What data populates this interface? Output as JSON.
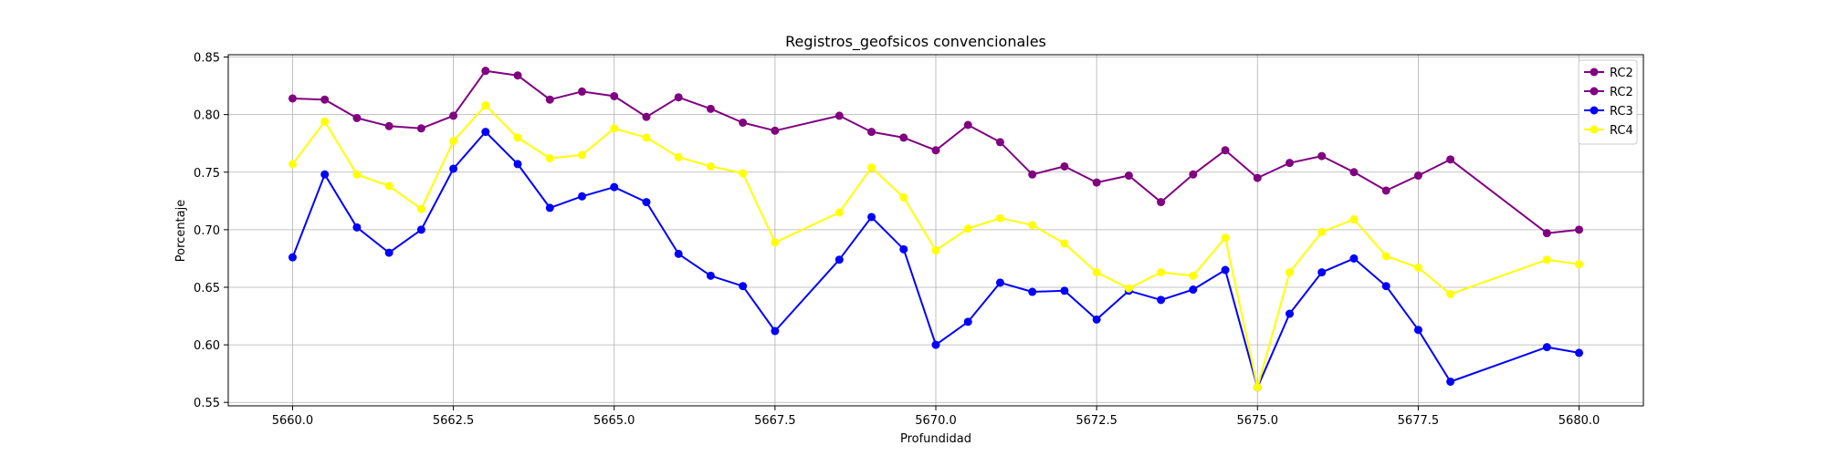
{
  "chart_data": {
    "type": "line",
    "title": "Registros_geofsicos convencionales",
    "xlabel": "Profundidad",
    "ylabel": "Porcentaje",
    "xlim": [
      5659,
      5681
    ],
    "ylim": [
      0.547,
      0.852
    ],
    "xticks": [
      5660.0,
      5662.5,
      5665.0,
      5667.5,
      5670.0,
      5672.5,
      5675.0,
      5677.5,
      5680.0
    ],
    "xtick_labels": [
      "5660.0",
      "5662.5",
      "5665.0",
      "5667.5",
      "5670.0",
      "5672.5",
      "5675.0",
      "5677.5",
      "5680.0"
    ],
    "yticks": [
      0.55,
      0.6,
      0.65,
      0.7,
      0.75,
      0.8,
      0.85
    ],
    "ytick_labels": [
      "0.55",
      "0.60",
      "0.65",
      "0.70",
      "0.75",
      "0.80",
      "0.85"
    ],
    "grid": true,
    "legend_position": "top-right",
    "series": [
      {
        "name": "RC2",
        "color": "#800080",
        "x": [
          5660.0,
          5660.5,
          5661.0,
          5661.5,
          5662.0,
          5662.5,
          5663.0,
          5663.5,
          5664.0,
          5664.5,
          5665.0,
          5665.5,
          5666.0,
          5666.5,
          5667.0,
          5667.5,
          5668.5,
          5669.0,
          5669.5,
          5670.0,
          5670.5,
          5671.0,
          5671.5,
          5672.0,
          5672.5,
          5673.0,
          5673.5,
          5674.0,
          5674.5,
          5675.0,
          5675.5,
          5676.0,
          5676.5,
          5677.0,
          5677.5,
          5678.0,
          5679.5,
          5680.0
        ],
        "y": [
          0.814,
          0.813,
          0.797,
          0.79,
          0.788,
          0.799,
          0.838,
          0.834,
          0.813,
          0.82,
          0.816,
          0.798,
          0.815,
          0.805,
          0.793,
          0.786,
          0.799,
          0.785,
          0.78,
          0.769,
          0.791,
          0.776,
          0.748,
          0.755,
          0.741,
          0.747,
          0.724,
          0.748,
          0.769,
          0.745,
          0.758,
          0.764,
          0.75,
          0.734,
          0.747,
          0.761,
          0.697,
          0.7
        ]
      },
      {
        "name": "RC2",
        "color": "#800080",
        "x": [],
        "y": []
      },
      {
        "name": "RC3",
        "color": "#0000ff",
        "x": [
          5660.0,
          5660.5,
          5661.0,
          5661.5,
          5662.0,
          5662.5,
          5663.0,
          5663.5,
          5664.0,
          5664.5,
          5665.0,
          5665.5,
          5666.0,
          5666.5,
          5667.0,
          5667.5,
          5668.5,
          5669.0,
          5669.5,
          5670.0,
          5670.5,
          5671.0,
          5671.5,
          5672.0,
          5672.5,
          5673.0,
          5673.5,
          5674.0,
          5674.5,
          5675.0,
          5675.5,
          5676.0,
          5676.5,
          5677.0,
          5677.5,
          5678.0,
          5679.5,
          5680.0
        ],
        "y": [
          0.676,
          0.748,
          0.702,
          0.68,
          0.7,
          0.753,
          0.785,
          0.757,
          0.719,
          0.729,
          0.737,
          0.724,
          0.679,
          0.66,
          0.651,
          0.612,
          0.674,
          0.711,
          0.683,
          0.6,
          0.62,
          0.654,
          0.646,
          0.647,
          0.622,
          0.647,
          0.639,
          0.648,
          0.665,
          0.563,
          0.627,
          0.663,
          0.675,
          0.651,
          0.613,
          0.568,
          0.598,
          0.593
        ]
      },
      {
        "name": "RC4",
        "color": "#ffff00",
        "x": [
          5660.0,
          5660.5,
          5661.0,
          5661.5,
          5662.0,
          5662.5,
          5663.0,
          5663.5,
          5664.0,
          5664.5,
          5665.0,
          5665.5,
          5666.0,
          5666.5,
          5667.0,
          5667.5,
          5668.5,
          5669.0,
          5669.5,
          5670.0,
          5670.5,
          5671.0,
          5671.5,
          5672.0,
          5672.5,
          5673.0,
          5673.5,
          5674.0,
          5674.5,
          5675.0,
          5675.5,
          5676.0,
          5676.5,
          5677.0,
          5677.5,
          5678.0,
          5679.5,
          5680.0
        ],
        "y": [
          0.757,
          0.794,
          0.748,
          0.738,
          0.718,
          0.777,
          0.808,
          0.78,
          0.762,
          0.765,
          0.788,
          0.78,
          0.763,
          0.755,
          0.749,
          0.689,
          0.715,
          0.754,
          0.728,
          0.682,
          0.701,
          0.71,
          0.704,
          0.688,
          0.663,
          0.649,
          0.663,
          0.66,
          0.693,
          0.563,
          0.663,
          0.698,
          0.709,
          0.677,
          0.667,
          0.644,
          0.674,
          0.67
        ]
      }
    ]
  }
}
